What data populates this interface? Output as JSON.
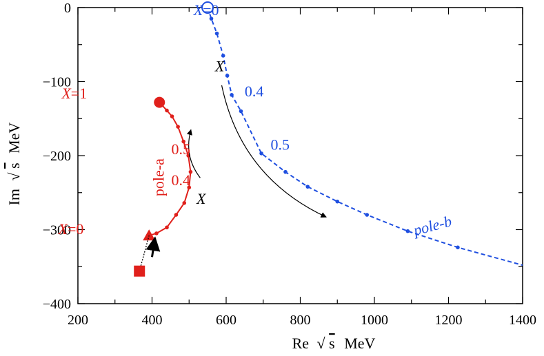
{
  "chart_data": {
    "type": "scatter",
    "title": "",
    "xlabel": "Re",
    "ylabel": "Im",
    "axis_units": "MeV",
    "sqrt_symbol": "√",
    "sqrt_arg": "s",
    "xlim": [
      200,
      1400
    ],
    "ylim": [
      -400,
      0
    ],
    "xticks": [
      200,
      400,
      600,
      800,
      1000,
      1200,
      1400
    ],
    "yticks": [
      0,
      -100,
      -200,
      -300,
      -400
    ],
    "xtick_labels": [
      "200",
      "400",
      "600",
      "800",
      "1000",
      "1200",
      "1400"
    ],
    "ytick_labels": [
      "0",
      "−100",
      "−200",
      "−300",
      "−400"
    ],
    "colors": {
      "pole_a": "#e0201b",
      "pole_b": "#1f4fe0",
      "arrow": "#000000"
    },
    "series": [
      {
        "name": "pole-a",
        "line": "solid",
        "points": [
          [
            392,
            -308
          ],
          [
            412,
            -305
          ],
          [
            440,
            -297
          ],
          [
            465,
            -280
          ],
          [
            487,
            -264
          ],
          [
            500,
            -243
          ],
          [
            504,
            -222
          ],
          [
            498,
            -200
          ],
          [
            485,
            -181
          ],
          [
            470,
            -161
          ],
          [
            454,
            -147
          ],
          [
            440,
            -139
          ],
          [
            420,
            -128
          ]
        ],
        "end_marker": {
          "shape": "circle-filled",
          "x": 420,
          "y": -128
        },
        "start_marker": {
          "shape": "triangle-filled",
          "x": 392,
          "y": -308
        }
      },
      {
        "name": "pole-b",
        "line": "dashed",
        "points": [
          [
            550,
            0
          ],
          [
            560,
            -15
          ],
          [
            575,
            -35
          ],
          [
            592,
            -65
          ],
          [
            603,
            -92
          ],
          [
            615,
            -118
          ],
          [
            640,
            -140
          ],
          [
            695,
            -197
          ],
          [
            760,
            -222
          ],
          [
            820,
            -242
          ],
          [
            900,
            -262
          ],
          [
            980,
            -280
          ],
          [
            1090,
            -302
          ],
          [
            1225,
            -324
          ],
          [
            1400,
            -348
          ]
        ],
        "start_marker": {
          "shape": "circle-open",
          "x": 550,
          "y": 0
        }
      },
      {
        "name": "original-pole",
        "line": "dotted",
        "points": [
          [
            366,
            -356
          ],
          [
            392,
            -308
          ]
        ],
        "marker": {
          "shape": "square-filled",
          "x": 366,
          "y": -356
        }
      }
    ],
    "annotations": [
      {
        "series": "pole-b",
        "var": "X",
        "rest": "=0",
        "x": 512,
        "y": -10
      },
      {
        "series": "pole-a",
        "var": "X",
        "rest": "=1",
        "x": 156,
        "y": -123
      },
      {
        "series": "pole-a",
        "var": "X",
        "rest": "=0",
        "x": 147,
        "y": -306
      },
      {
        "series": "pole-a",
        "text": "0.5",
        "x": 452,
        "y": -198
      },
      {
        "series": "pole-a",
        "text": "0.4",
        "x": 452,
        "y": -240
      },
      {
        "series": "pole-b",
        "text": "0.4",
        "x": 650,
        "y": -120
      },
      {
        "series": "pole-b",
        "text": "0.5",
        "x": 720,
        "y": -192
      },
      {
        "series": "pole-a",
        "text": "pole-a",
        "x": 432,
        "y": -255,
        "rotate": -90
      },
      {
        "series": "pole-b",
        "text": "pole-b",
        "x": 1110,
        "y": -308,
        "rotate": -15
      },
      {
        "series": "arrow",
        "var": "X",
        "rest": "",
        "x": 570,
        "y": -86
      },
      {
        "series": "arrow",
        "var": "X",
        "rest": "",
        "x": 520,
        "y": -265
      }
    ],
    "arrows": [
      {
        "name": "pole-b-direction-arrow",
        "from": [
          588,
          -105
        ],
        "to": [
          870,
          -283
        ],
        "curve": 0.25
      },
      {
        "name": "pole-a-direction-arrow",
        "from": [
          530,
          -230
        ],
        "to": [
          505,
          -165
        ],
        "curve": -0.25
      },
      {
        "name": "original-to-a-arrow",
        "from": [
          400,
          -337
        ],
        "to": [
          408,
          -311
        ],
        "curve": 0,
        "bold": true
      }
    ]
  }
}
